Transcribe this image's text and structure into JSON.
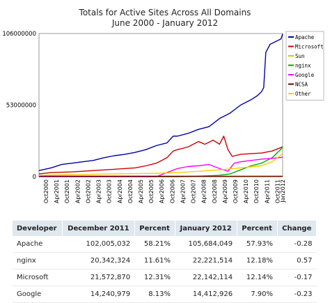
{
  "chart_data": {
    "type": "line",
    "title": "Totals for Active Sites Across All Domains",
    "subtitle": "June 2000 - January 2012",
    "ylim": [
      0,
      106000000
    ],
    "y_ticks": [
      {
        "value": 0,
        "label": "0"
      },
      {
        "value": 53000000,
        "label": "53000000"
      },
      {
        "value": 106000000,
        "label": "106000000"
      }
    ],
    "x_range": [
      2000.42,
      2012.0
    ],
    "x_ticks": [
      {
        "value": 2000.75,
        "label": "Oct2000"
      },
      {
        "value": 2001.25,
        "label": "Apr2001"
      },
      {
        "value": 2001.75,
        "label": "Oct2001"
      },
      {
        "value": 2002.25,
        "label": "Apr2002"
      },
      {
        "value": 2002.75,
        "label": "Oct2002"
      },
      {
        "value": 2003.25,
        "label": "Apr2003"
      },
      {
        "value": 2003.75,
        "label": "Oct2003"
      },
      {
        "value": 2004.25,
        "label": "Apr2004"
      },
      {
        "value": 2004.75,
        "label": "Oct2004"
      },
      {
        "value": 2005.25,
        "label": "Apr2005"
      },
      {
        "value": 2005.75,
        "label": "Oct2005"
      },
      {
        "value": 2006.25,
        "label": "Apr2006"
      },
      {
        "value": 2006.75,
        "label": "Oct2006"
      },
      {
        "value": 2007.25,
        "label": "Apr2007"
      },
      {
        "value": 2007.75,
        "label": "Oct2007"
      },
      {
        "value": 2008.25,
        "label": "Apr2008"
      },
      {
        "value": 2008.75,
        "label": "Oct2008"
      },
      {
        "value": 2009.25,
        "label": "Apr2009"
      },
      {
        "value": 2009.75,
        "label": "Oct2009"
      },
      {
        "value": 2010.25,
        "label": "Apr2010"
      },
      {
        "value": 2010.75,
        "label": "Oct2010"
      },
      {
        "value": 2011.25,
        "label": "Apr2011"
      },
      {
        "value": 2011.75,
        "label": "Oct2011"
      },
      {
        "value": 2012.0,
        "label": "Jan2012"
      }
    ],
    "legend_position": "right",
    "grid": true,
    "series": [
      {
        "name": "Apache",
        "color": "#0000aa",
        "points": [
          [
            2000.42,
            4500000
          ],
          [
            2001.0,
            6500000
          ],
          [
            2001.5,
            9000000
          ],
          [
            2002.0,
            10000000
          ],
          [
            2002.5,
            11000000
          ],
          [
            2003.0,
            12000000
          ],
          [
            2003.5,
            14000000
          ],
          [
            2004.0,
            15500000
          ],
          [
            2004.5,
            16500000
          ],
          [
            2005.0,
            18000000
          ],
          [
            2005.5,
            20000000
          ],
          [
            2006.0,
            23000000
          ],
          [
            2006.5,
            25000000
          ],
          [
            2006.8,
            30000000
          ],
          [
            2007.0,
            30000000
          ],
          [
            2007.5,
            32000000
          ],
          [
            2008.0,
            35000000
          ],
          [
            2008.5,
            37000000
          ],
          [
            2009.0,
            43000000
          ],
          [
            2009.5,
            47000000
          ],
          [
            2010.0,
            53000000
          ],
          [
            2010.5,
            57000000
          ],
          [
            2010.8,
            60000000
          ],
          [
            2011.0,
            63000000
          ],
          [
            2011.1,
            66000000
          ],
          [
            2011.2,
            92000000
          ],
          [
            2011.4,
            98000000
          ],
          [
            2011.92,
            102005032
          ],
          [
            2012.0,
            105684049
          ]
        ]
      },
      {
        "name": "Microsoft",
        "color": "#cc0000",
        "points": [
          [
            2000.42,
            2000000
          ],
          [
            2001.0,
            3000000
          ],
          [
            2002.0,
            3500000
          ],
          [
            2003.0,
            4500000
          ],
          [
            2004.0,
            5500000
          ],
          [
            2005.0,
            6500000
          ],
          [
            2005.5,
            8000000
          ],
          [
            2006.0,
            10000000
          ],
          [
            2006.5,
            14000000
          ],
          [
            2006.8,
            19000000
          ],
          [
            2007.0,
            20000000
          ],
          [
            2007.5,
            22000000
          ],
          [
            2008.0,
            26000000
          ],
          [
            2008.3,
            24000000
          ],
          [
            2008.7,
            27000000
          ],
          [
            2009.0,
            24000000
          ],
          [
            2009.2,
            30000000
          ],
          [
            2009.4,
            20000000
          ],
          [
            2009.6,
            15000000
          ],
          [
            2010.0,
            16500000
          ],
          [
            2010.5,
            17000000
          ],
          [
            2011.0,
            17500000
          ],
          [
            2011.5,
            19000000
          ],
          [
            2011.92,
            21572870
          ],
          [
            2012.0,
            22142114
          ]
        ]
      },
      {
        "name": "Sun",
        "color": "#cccc00",
        "points": [
          [
            2000.42,
            500000
          ],
          [
            2003.0,
            500000
          ],
          [
            2006.0,
            500000
          ],
          [
            2009.0,
            500000
          ],
          [
            2012.0,
            500000
          ]
        ]
      },
      {
        "name": "nginx",
        "color": "#00aa00",
        "points": [
          [
            2000.42,
            0
          ],
          [
            2007.0,
            0
          ],
          [
            2008.0,
            300000
          ],
          [
            2009.0,
            1000000
          ],
          [
            2009.5,
            2000000
          ],
          [
            2010.0,
            5000000
          ],
          [
            2010.5,
            8000000
          ],
          [
            2011.0,
            10000000
          ],
          [
            2011.5,
            14000000
          ],
          [
            2011.92,
            20342324
          ],
          [
            2012.0,
            22221514
          ]
        ]
      },
      {
        "name": "Google",
        "color": "#ff00ff",
        "points": [
          [
            2000.42,
            0
          ],
          [
            2006.0,
            0
          ],
          [
            2006.5,
            3000000
          ],
          [
            2007.0,
            6000000
          ],
          [
            2007.5,
            7500000
          ],
          [
            2008.0,
            8000000
          ],
          [
            2008.5,
            9000000
          ],
          [
            2009.0,
            6000000
          ],
          [
            2009.4,
            4000000
          ],
          [
            2009.7,
            10000000
          ],
          [
            2010.0,
            11000000
          ],
          [
            2010.5,
            12000000
          ],
          [
            2011.0,
            13000000
          ],
          [
            2011.5,
            13500000
          ],
          [
            2011.92,
            14240979
          ],
          [
            2012.0,
            14412926
          ]
        ]
      },
      {
        "name": "NCSA",
        "color": "#660000",
        "points": [
          [
            2000.42,
            300000
          ],
          [
            2004.0,
            200000
          ],
          [
            2008.0,
            100000
          ],
          [
            2012.0,
            100000
          ]
        ]
      },
      {
        "name": "Other",
        "color": "#ffcc00",
        "points": [
          [
            2000.42,
            1000000
          ],
          [
            2002.0,
            1500000
          ],
          [
            2004.0,
            2000000
          ],
          [
            2006.0,
            2500000
          ],
          [
            2007.0,
            3000000
          ],
          [
            2008.0,
            4000000
          ],
          [
            2009.0,
            5000000
          ],
          [
            2010.0,
            6500000
          ],
          [
            2011.0,
            8000000
          ],
          [
            2011.5,
            11000000
          ],
          [
            2012.0,
            17000000
          ]
        ]
      }
    ],
    "table": {
      "headers": [
        "Developer",
        "December 2011",
        "Percent",
        "January 2012",
        "Percent",
        "Change"
      ],
      "rows": [
        [
          "Apache",
          "102,005,032",
          "58.21%",
          "105,684,049",
          "57.93%",
          "-0.28"
        ],
        [
          "nginx",
          "20,342,324",
          "11.61%",
          "22,221,514",
          "12.18%",
          "0.57"
        ],
        [
          "Microsoft",
          "21,572,870",
          "12.31%",
          "22,142,114",
          "12.14%",
          "-0.17"
        ],
        [
          "Google",
          "14,240,979",
          "8.13%",
          "14,412,926",
          "7.90%",
          "-0.23"
        ]
      ]
    }
  }
}
